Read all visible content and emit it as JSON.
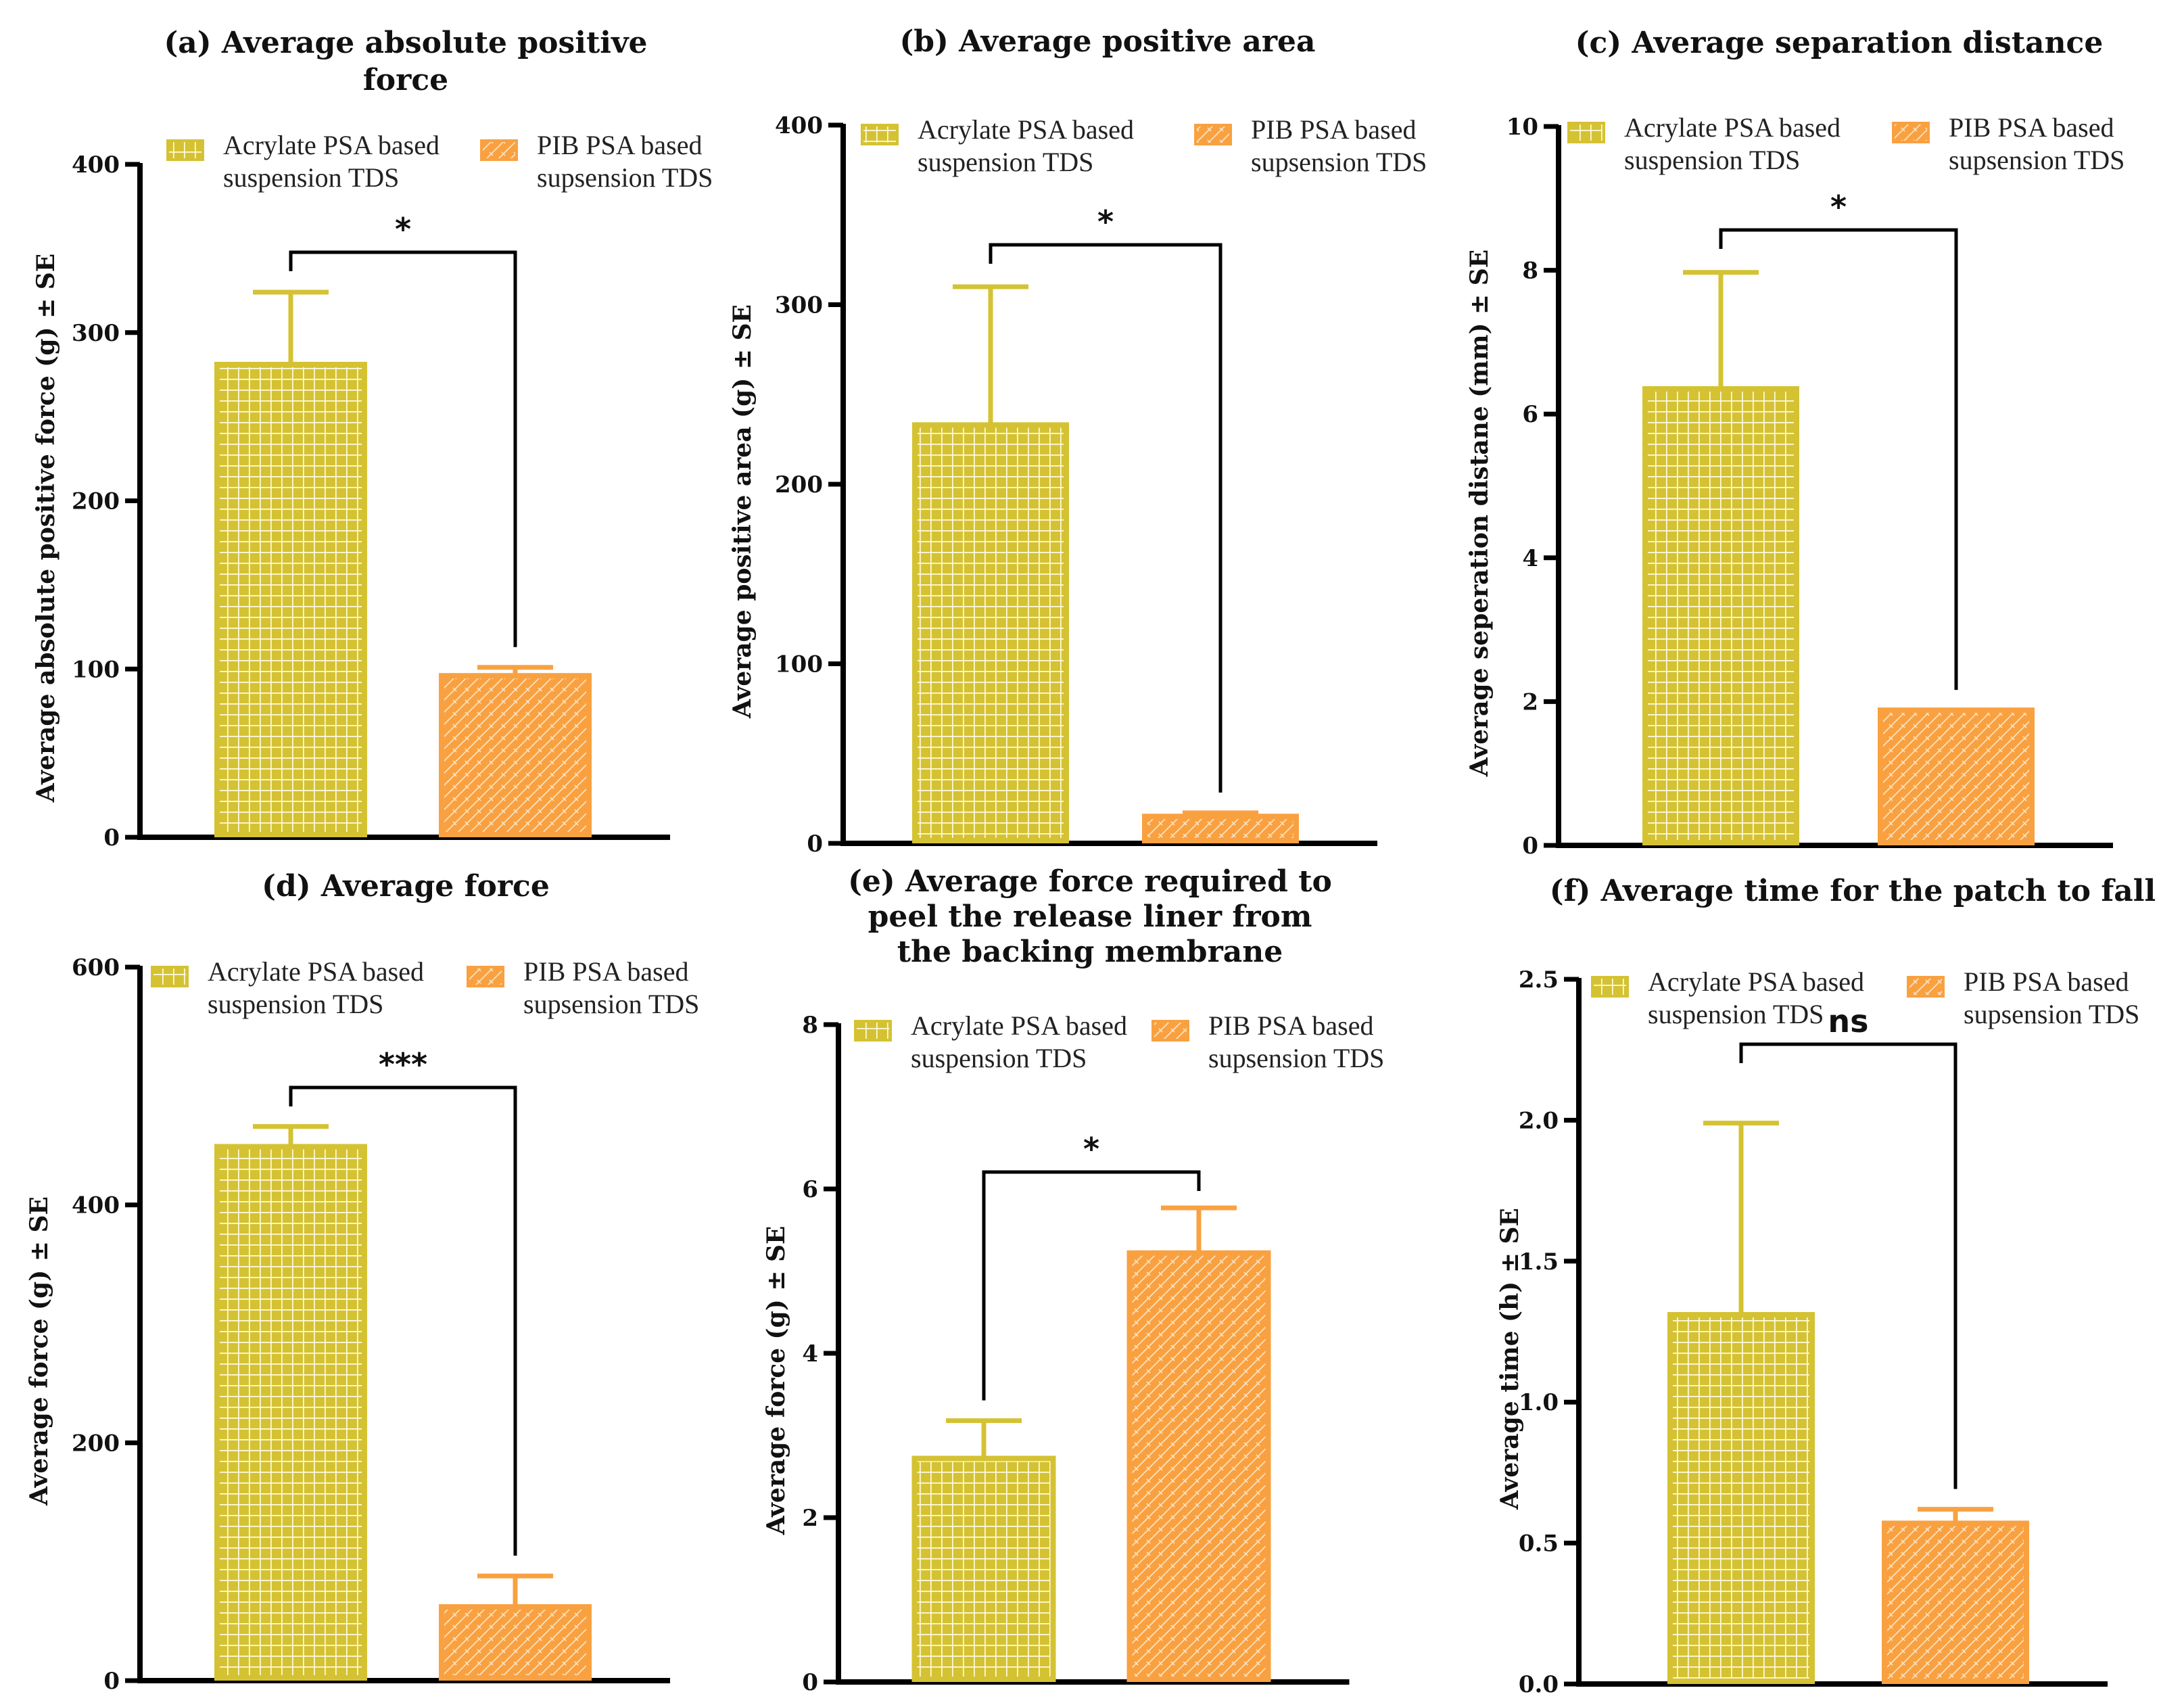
{
  "colors": {
    "acrylate": "#d4c233",
    "pib": "#f9a141",
    "axis": "#000000"
  },
  "legend": {
    "acrylate_line1": "Acrylate PSA based",
    "acrylate_line2": "suspension TDS",
    "pib_line1": "PIB PSA based",
    "pib_line2": "supsension TDS",
    "acrylate_icon": "grid-pattern-swatch",
    "pib_icon": "hatch-pattern-swatch"
  },
  "chart_data": [
    {
      "id": "a",
      "type": "bar",
      "title_lines": [
        "(a) Average absolute positive",
        "force"
      ],
      "ylabel": "Average absolute positive force (g) ± SE",
      "xlabel": "",
      "ylim": [
        0,
        400
      ],
      "yticks": [
        "0",
        "100",
        "200",
        "300",
        "400"
      ],
      "ytick_values": [
        0,
        100,
        200,
        300,
        400
      ],
      "categories": [
        "Acrylate PSA based suspension TDS",
        "PIB PSA based supsension TDS"
      ],
      "values": [
        281,
        96
      ],
      "errors": [
        43,
        5
      ],
      "significance": "*",
      "legend_position": "top"
    },
    {
      "id": "b",
      "type": "bar",
      "title_lines": [
        "(b) Average positive area"
      ],
      "ylabel": "Average positive area (g) ± SE",
      "xlabel": "",
      "ylim": [
        0,
        400
      ],
      "yticks": [
        "0",
        "100",
        "200",
        "300",
        "400"
      ],
      "ytick_values": [
        0,
        100,
        200,
        300,
        400
      ],
      "categories": [
        "Acrylate PSA based suspension TDS",
        "PIB PSA based supsension TDS"
      ],
      "values": [
        233,
        15
      ],
      "errors": [
        77,
        2
      ],
      "significance": "*",
      "legend_position": "top"
    },
    {
      "id": "c",
      "type": "bar",
      "title_lines": [
        "(c) Average separation distance"
      ],
      "ylabel": "Average seperation distane (mm) ± SE",
      "xlabel": "",
      "ylim": [
        0,
        10
      ],
      "yticks": [
        "0",
        "2",
        "4",
        "6",
        "8",
        "10"
      ],
      "ytick_values": [
        0,
        2,
        4,
        6,
        8,
        10
      ],
      "categories": [
        "Acrylate PSA based suspension TDS",
        "PIB PSA based supsension TDS"
      ],
      "values": [
        6.35,
        1.88
      ],
      "errors": [
        1.62,
        0
      ],
      "significance": "*",
      "legend_position": "top"
    },
    {
      "id": "d",
      "type": "bar",
      "title_lines": [
        "(d) Average force"
      ],
      "ylabel": "Average force (g) ± SE",
      "xlabel": "",
      "ylim": [
        0,
        600
      ],
      "yticks": [
        "0",
        "200",
        "400",
        "600"
      ],
      "ytick_values": [
        0,
        200,
        400,
        600
      ],
      "categories": [
        "Acrylate PSA based suspension TDS",
        "PIB PSA based supsension TDS"
      ],
      "values": [
        449,
        62
      ],
      "errors": [
        17,
        26
      ],
      "significance": "***",
      "legend_position": "top"
    },
    {
      "id": "e",
      "type": "bar",
      "title_lines": [
        "(e) Average force required to",
        "peel the release liner from",
        "the backing membrane"
      ],
      "ylabel": "Average force (g) ± SE",
      "xlabel": "",
      "ylim": [
        0,
        8
      ],
      "yticks": [
        "0",
        "2",
        "4",
        "6",
        "8"
      ],
      "ytick_values": [
        0,
        2,
        4,
        6,
        8
      ],
      "categories": [
        "Acrylate PSA based suspension TDS",
        "PIB PSA based supsension TDS"
      ],
      "values": [
        2.72,
        5.22
      ],
      "errors": [
        0.46,
        0.55
      ],
      "significance": "*",
      "legend_position": "top"
    },
    {
      "id": "f",
      "type": "bar",
      "title_lines": [
        "(f) Average time for the patch to fall"
      ],
      "ylabel": "Average time (h) ± SE",
      "xlabel": "",
      "ylim": [
        0,
        2.5
      ],
      "yticks": [
        "0.0",
        "0.5",
        "1.0",
        "1.5",
        "2.0",
        "2.5"
      ],
      "ytick_values": [
        0,
        0.5,
        1.0,
        1.5,
        2.0,
        2.5
      ],
      "categories": [
        "Acrylate PSA based suspension TDS",
        "PIB PSA based supsension TDS"
      ],
      "values": [
        1.31,
        0.57
      ],
      "errors": [
        0.68,
        0.05
      ],
      "significance": "ns",
      "legend_position": "top"
    }
  ]
}
